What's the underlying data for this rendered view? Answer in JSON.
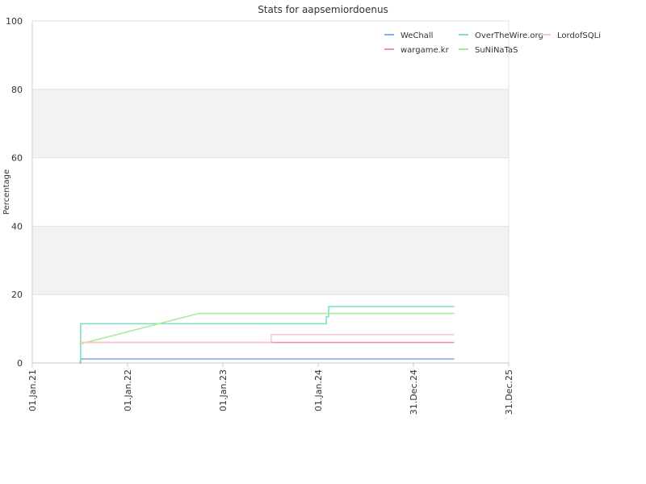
{
  "chart_data": {
    "type": "line",
    "title": "Stats for aapsemiordoenus",
    "ylabel": "Percentage",
    "xlabel": "",
    "ylim": [
      0,
      100
    ],
    "yticks": [
      0,
      20,
      40,
      60,
      80,
      100
    ],
    "xlim": [
      "2021-01-01",
      "2025-12-31"
    ],
    "xticks": [
      {
        "date": "2021-01-01",
        "label": "01.Jan.21"
      },
      {
        "date": "2022-01-01",
        "label": "01.Jan.22"
      },
      {
        "date": "2023-01-01",
        "label": "01.Jan.23"
      },
      {
        "date": "2024-01-01",
        "label": "01.Jan.24"
      },
      {
        "date": "2024-12-31",
        "label": "31.Dec.24"
      },
      {
        "date": "2025-12-31",
        "label": "31.Dec.25"
      }
    ],
    "grid": true,
    "legend_position": "top-right",
    "series": [
      {
        "name": "WeChall",
        "color": "#7fb2f0",
        "step": true,
        "points": [
          [
            "2021-07-01",
            0
          ],
          [
            "2021-07-05",
            1.2
          ],
          [
            "2025-06-05",
            1.2
          ]
        ]
      },
      {
        "name": "wargame.kr",
        "color": "#f08fa8",
        "step": true,
        "points": [
          [
            "2021-07-01",
            6.0
          ],
          [
            "2025-06-05",
            6.0
          ]
        ]
      },
      {
        "name": "OverTheWire.org",
        "color": "#7fe0c8",
        "step": true,
        "points": [
          [
            "2021-07-01",
            0.5
          ],
          [
            "2021-07-05",
            11.5
          ],
          [
            "2023-09-01",
            11.5
          ],
          [
            "2024-02-01",
            13.5
          ],
          [
            "2024-02-10",
            16.5
          ],
          [
            "2025-06-05",
            16.5
          ]
        ]
      },
      {
        "name": "SuNiNaTaS",
        "color": "#a8ec98",
        "step": false,
        "points": [
          [
            "2021-07-01",
            5.5
          ],
          [
            "2022-10-01",
            14.5
          ],
          [
            "2025-06-05",
            14.5
          ]
        ]
      },
      {
        "name": "LordofSQLi",
        "color": "#f8c8d0",
        "step": true,
        "points": [
          [
            "2021-07-01",
            6.0
          ],
          [
            "2023-07-01",
            6.0
          ],
          [
            "2023-07-05",
            8.3
          ],
          [
            "2025-06-05",
            8.3
          ]
        ]
      }
    ]
  }
}
